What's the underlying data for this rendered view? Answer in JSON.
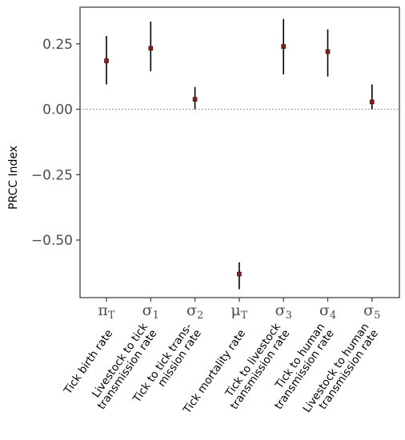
{
  "chart_data": {
    "type": "errorbar",
    "ylabel": "PRCC Index",
    "ylim": [
      -0.72,
      0.39
    ],
    "yticks": [
      0.25,
      0.0,
      -0.25,
      -0.5
    ],
    "ytick_labels": [
      "0.25",
      "0.00",
      "−0.25",
      "−0.50"
    ],
    "reference_line": {
      "y": 0,
      "style": "dotted",
      "color": "#9e9e9e"
    },
    "grid": false,
    "marker_color": "#8b1a1a",
    "bar_color": "#000000",
    "categories": [
      {
        "symbol": "π",
        "sub": "T",
        "label": [
          "Tick birth rate"
        ]
      },
      {
        "symbol": "σ",
        "sub": "1",
        "label": [
          "Livestock to tick",
          "transmission rate"
        ]
      },
      {
        "symbol": "σ",
        "sub": "2",
        "label": [
          "Tick to tick trans-",
          "mission rate"
        ]
      },
      {
        "symbol": "μ",
        "sub": "T",
        "label": [
          "Tick mortality rate"
        ]
      },
      {
        "symbol": "σ",
        "sub": "3",
        "label": [
          "Tick to livestock",
          "transmission rate"
        ]
      },
      {
        "symbol": "σ",
        "sub": "4",
        "label": [
          "Tick to human",
          "transmission rate"
        ]
      },
      {
        "symbol": "σ",
        "sub": "5",
        "label": [
          "Livestock to human",
          "transmission rate"
        ]
      }
    ],
    "values": [
      0.185,
      0.233,
      0.038,
      -0.63,
      0.24,
      0.22,
      0.028
    ],
    "lower": [
      0.095,
      0.145,
      0.0,
      -0.688,
      0.133,
      0.125,
      0.0
    ],
    "upper": [
      0.28,
      0.335,
      0.085,
      -0.585,
      0.345,
      0.305,
      0.095
    ]
  }
}
